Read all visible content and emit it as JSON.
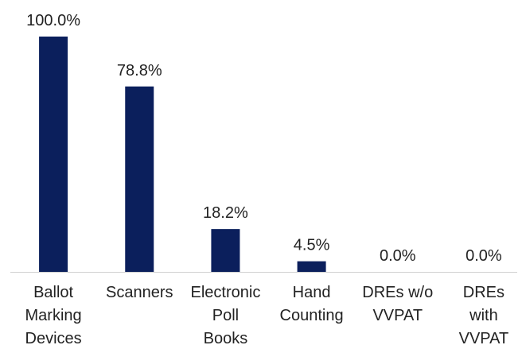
{
  "chart_data": {
    "type": "bar",
    "categories": [
      "Ballot\nMarking\nDevices",
      "Scanners",
      "Electronic\nPoll\nBooks",
      "Hand\nCounting",
      "DREs w/o\nVVPAT",
      "DREs\nwith\nVVPAT"
    ],
    "values": [
      100.0,
      78.8,
      18.2,
      4.5,
      0.0,
      0.0
    ],
    "value_labels": [
      "100.0%",
      "78.8%",
      "18.2%",
      "4.5%",
      "0.0%",
      "0.0%"
    ],
    "color": "#0b1f5c"
  }
}
